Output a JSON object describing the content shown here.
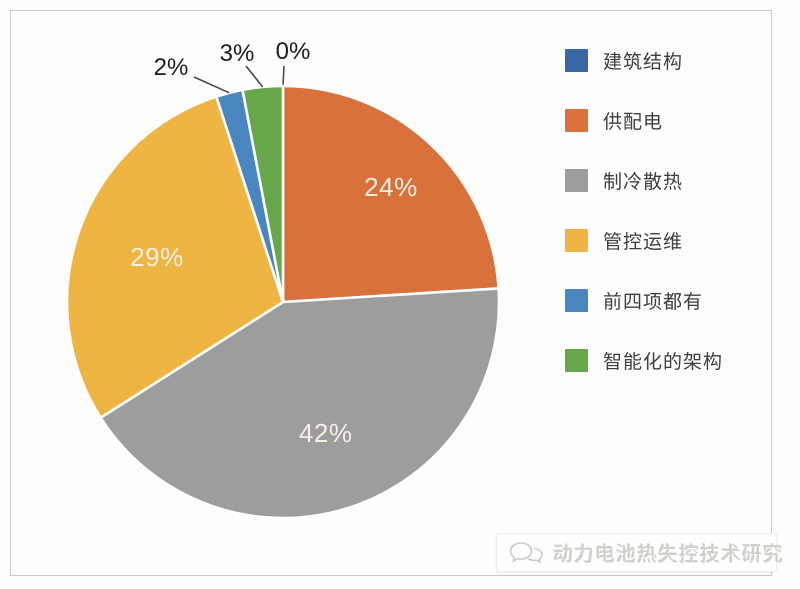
{
  "chart_data": {
    "type": "pie",
    "title": "",
    "categories": [
      "建筑结构",
      "供配电",
      "制冷散热",
      "管控运维",
      "前四项都有",
      "智能化的架构"
    ],
    "values": [
      0,
      24,
      42,
      29,
      2,
      3
    ],
    "labels": [
      "0%",
      "24%",
      "42%",
      "29%",
      "2%",
      "3%"
    ],
    "colors": [
      "#3a66a5",
      "#d8713c",
      "#9d9d9d",
      "#efb542",
      "#4a86c0",
      "#67a74b"
    ],
    "legend_position": "right",
    "start_angle_deg": 0,
    "direction": "clockwise",
    "slice_border_color": "#ffffff",
    "inside_label_color": "#f6f0e2",
    "outside_label_color": "#1c1c1c",
    "leader_line_color": "#4a4a4a"
  },
  "watermark": {
    "icon": "chat-bubbles-icon",
    "text": "动力电池热失控技术研究"
  },
  "frame": {
    "border_color": "#c9c9c7"
  }
}
